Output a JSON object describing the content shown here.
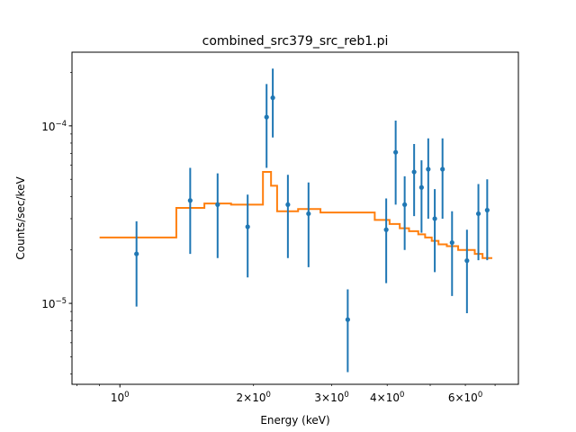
{
  "chart_data": {
    "type": "scatter",
    "title": "combined_src379_src_reb1.pi",
    "xlabel": "Energy (keV)",
    "ylabel": "Counts/sec/keV",
    "xscale": "log",
    "yscale": "log",
    "xlim": [
      0.78,
      7.9
    ],
    "ylim": [
      3.5e-06,
      0.00026
    ],
    "grid": false,
    "xticks_major": [
      {
        "value": 1,
        "label": "10^0"
      }
    ],
    "xticks_minor_labeled": [
      {
        "value": 2,
        "label": "2×10^0"
      },
      {
        "value": 3,
        "label": "3×10^0"
      },
      {
        "value": 4,
        "label": "4×10^0"
      },
      {
        "value": 6,
        "label": "6×10^0"
      }
    ],
    "yticks_major": [
      {
        "value": 1e-05,
        "label": "10^-5"
      },
      {
        "value": 0.0001,
        "label": "10^-4"
      }
    ],
    "series": [
      {
        "kind": "errorbar",
        "color": "#1f77b4",
        "points": [
          {
            "x": 1.09,
            "y": 1.9e-05,
            "ylo": 9.6e-06,
            "yhi": 2.9e-05
          },
          {
            "x": 1.44,
            "y": 3.8e-05,
            "ylo": 1.9e-05,
            "yhi": 5.8e-05
          },
          {
            "x": 1.66,
            "y": 3.6e-05,
            "ylo": 1.8e-05,
            "yhi": 5.4e-05
          },
          {
            "x": 1.94,
            "y": 2.7e-05,
            "ylo": 1.4e-05,
            "yhi": 4.1e-05
          },
          {
            "x": 2.14,
            "y": 0.000112,
            "ylo": 5.8e-05,
            "yhi": 0.000172
          },
          {
            "x": 2.21,
            "y": 0.000144,
            "ylo": 8.6e-05,
            "yhi": 0.00021
          },
          {
            "x": 2.39,
            "y": 3.6e-05,
            "ylo": 1.8e-05,
            "yhi": 5.3e-05
          },
          {
            "x": 2.66,
            "y": 3.2e-05,
            "ylo": 1.6e-05,
            "yhi": 4.8e-05
          },
          {
            "x": 3.26,
            "y": 8.1e-06,
            "ylo": 4.1e-06,
            "yhi": 1.2e-05
          },
          {
            "x": 3.98,
            "y": 2.6e-05,
            "ylo": 1.3e-05,
            "yhi": 3.9e-05
          },
          {
            "x": 4.18,
            "y": 7.1e-05,
            "ylo": 3.6e-05,
            "yhi": 0.000107
          },
          {
            "x": 4.38,
            "y": 3.6e-05,
            "ylo": 2e-05,
            "yhi": 5.2e-05
          },
          {
            "x": 4.6,
            "y": 5.5e-05,
            "ylo": 3.1e-05,
            "yhi": 7.9e-05
          },
          {
            "x": 4.78,
            "y": 4.5e-05,
            "ylo": 2.5e-05,
            "yhi": 6.4e-05
          },
          {
            "x": 4.95,
            "y": 5.7e-05,
            "ylo": 3e-05,
            "yhi": 8.5e-05
          },
          {
            "x": 5.12,
            "y": 3e-05,
            "ylo": 1.5e-05,
            "yhi": 4.4e-05
          },
          {
            "x": 5.33,
            "y": 5.7e-05,
            "ylo": 3e-05,
            "yhi": 8.5e-05
          },
          {
            "x": 5.6,
            "y": 2.2e-05,
            "ylo": 1.1e-05,
            "yhi": 3.3e-05
          },
          {
            "x": 6.05,
            "y": 1.74e-05,
            "ylo": 8.8e-06,
            "yhi": 2.6e-05
          },
          {
            "x": 6.42,
            "y": 3.2e-05,
            "ylo": 1.75e-05,
            "yhi": 4.7e-05
          },
          {
            "x": 6.72,
            "y": 3.35e-05,
            "ylo": 1.75e-05,
            "yhi": 5e-05
          }
        ]
      },
      {
        "kind": "step",
        "color": "#ff7f0e",
        "edges_x": [
          0.9,
          1.34,
          1.55,
          1.78,
          2.1,
          2.19,
          2.26,
          2.52,
          2.83,
          3.75,
          4.05,
          4.27,
          4.48,
          4.7,
          4.87,
          5.04,
          5.22,
          5.45,
          5.78,
          6.3,
          6.56,
          6.9
        ],
        "levels_y": [
          2.35e-05,
          3.45e-05,
          3.65e-05,
          3.6e-05,
          5.5e-05,
          4.6e-05,
          3.3e-05,
          3.4e-05,
          3.25e-05,
          2.95e-05,
          2.8e-05,
          2.65e-05,
          2.55e-05,
          2.45e-05,
          2.35e-05,
          2.25e-05,
          2.15e-05,
          2.1e-05,
          2e-05,
          1.9e-05,
          1.8e-05
        ]
      }
    ]
  }
}
